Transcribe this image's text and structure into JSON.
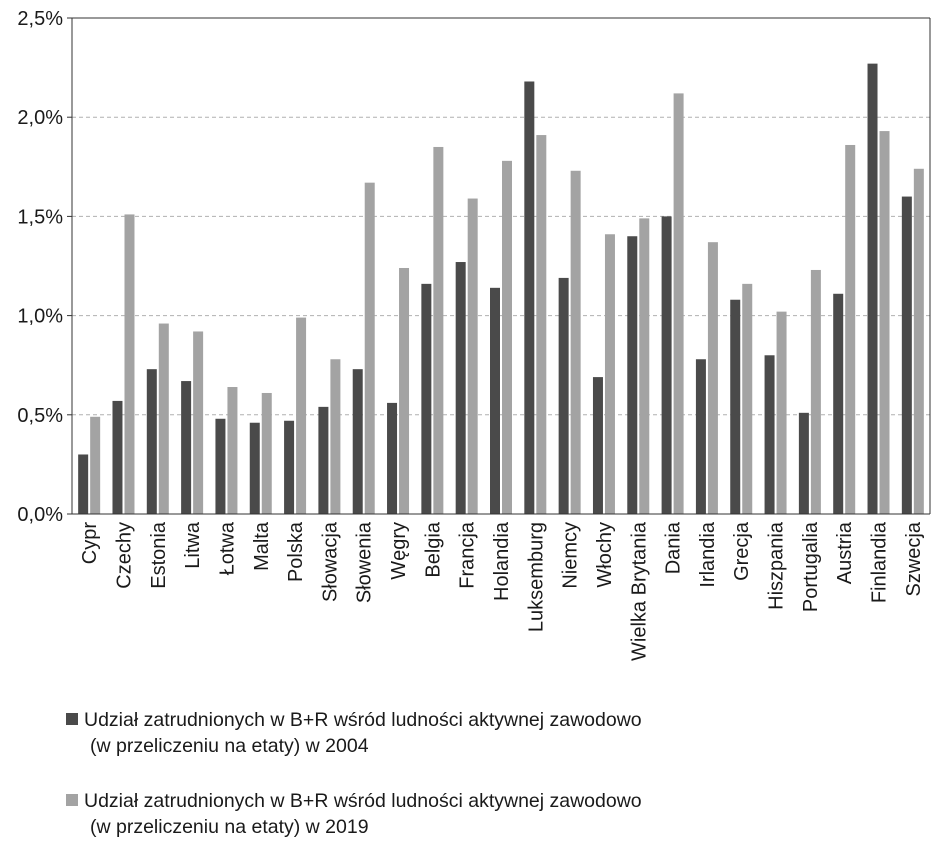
{
  "chart_data": {
    "type": "bar",
    "categories": [
      "Cypr",
      "Czechy",
      "Estonia",
      "Litwa",
      "Łotwa",
      "Malta",
      "Polska",
      "Słowacja",
      "Słowenia",
      "Węgry",
      "Belgia",
      "Francja",
      "Holandia",
      "Luksemburg",
      "Niemcy",
      "Włochy",
      "Wielka Brytania",
      "Dania",
      "Irlandia",
      "Grecja",
      "Hiszpania",
      "Portugalia",
      "Austria",
      "Finlandia",
      "Szwecja"
    ],
    "series": [
      {
        "name": "Udział zatrudnionych w B+R wśród ludności aktywnej zawodowo (w przeliczeniu na etaty) w 2004",
        "name_line1": "Udział zatrudnionych w B+R wśród ludności aktywnej zawodowo",
        "name_line2": "(w przeliczeniu na etaty) w 2004",
        "color": "#4a4a4a",
        "values": [
          0.3,
          0.57,
          0.73,
          0.67,
          0.48,
          0.46,
          0.47,
          0.54,
          0.73,
          0.56,
          1.16,
          1.27,
          1.14,
          2.18,
          1.19,
          0.69,
          1.4,
          1.5,
          0.78,
          1.08,
          0.8,
          0.51,
          1.11,
          2.27,
          1.6
        ]
      },
      {
        "name": "Udział zatrudnionych w B+R wśród ludności aktywnej zawodowo (w przeliczeniu na etaty) w 2019",
        "name_line1": "Udział zatrudnionych w B+R wśród ludności aktywnej zawodowo",
        "name_line2": "(w przeliczeniu na etaty) w 2019",
        "color": "#a3a3a3",
        "values": [
          0.49,
          1.51,
          0.96,
          0.92,
          0.64,
          0.61,
          0.99,
          0.78,
          1.67,
          1.24,
          1.85,
          1.59,
          1.78,
          1.91,
          1.73,
          1.41,
          1.49,
          2.12,
          1.37,
          1.16,
          1.02,
          1.23,
          1.86,
          1.93,
          1.74
        ]
      }
    ],
    "yticks": [
      "0,0%",
      "0,5%",
      "1,0%",
      "1,5%",
      "2,0%",
      "2,5%"
    ],
    "ylim": [
      0,
      2.5
    ],
    "grid": "horizontal-dashed",
    "legend": "bottom"
  }
}
